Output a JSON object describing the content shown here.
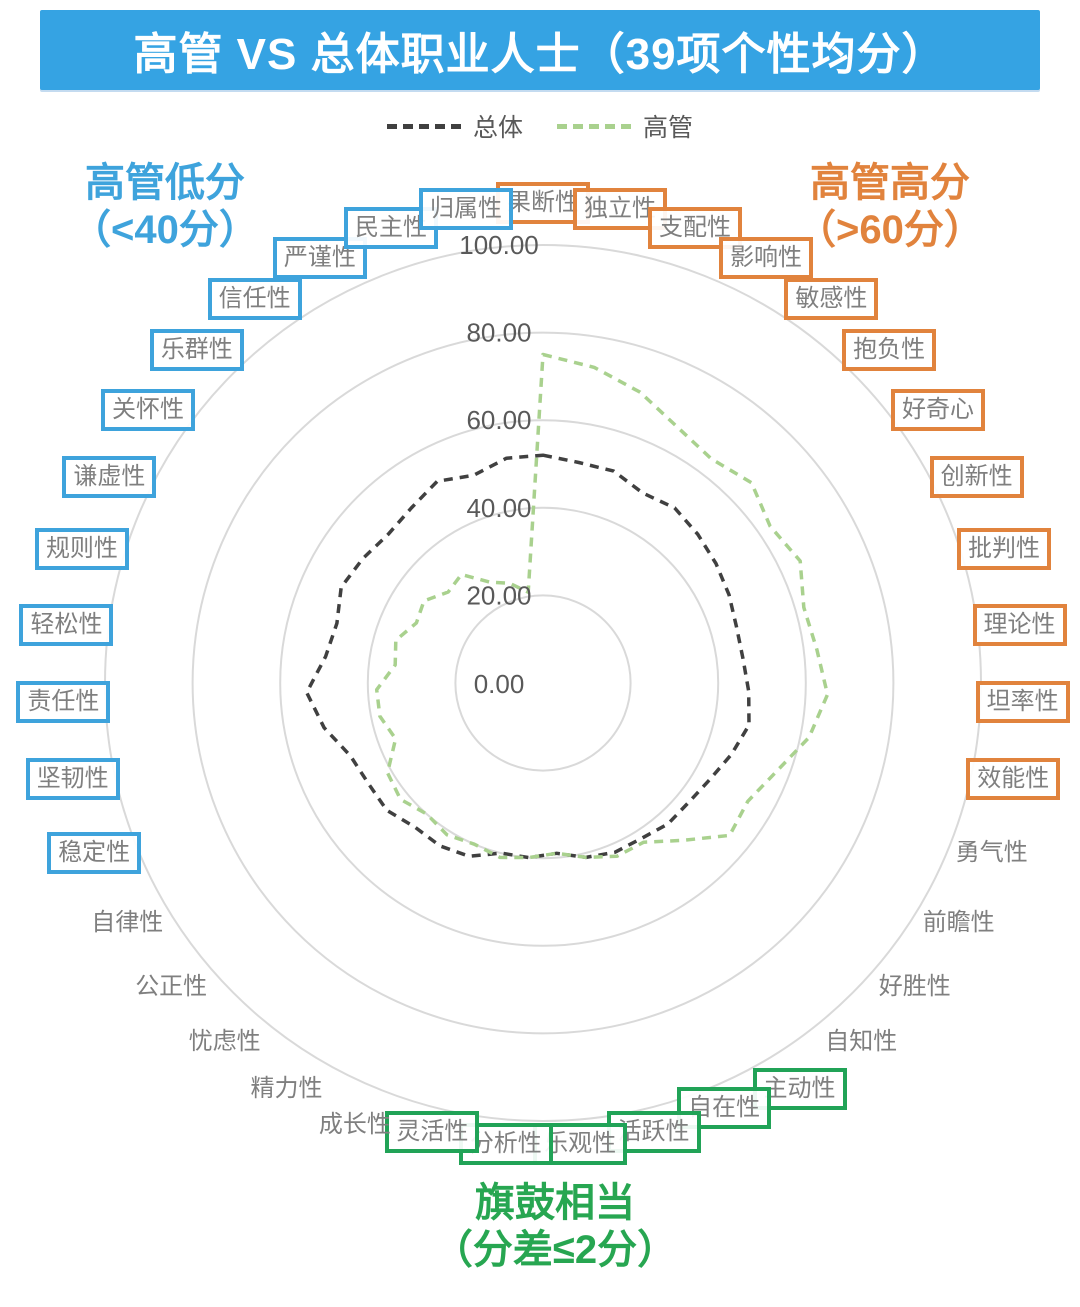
{
  "title": "高管 VS 总体职业人士（39项个性均分）",
  "legend": [
    {
      "label": "总体",
      "color": "#404040"
    },
    {
      "label": "高管",
      "color": "#a9d18e"
    }
  ],
  "annotations": {
    "low": {
      "line1": "高管低分",
      "line2": "（<40分）",
      "color": "#3ea3dc"
    },
    "high": {
      "line1": "高管高分",
      "line2": "（>60分）",
      "color": "#e1833d"
    },
    "equal": {
      "line1": "旗鼓相当",
      "line2": "（分差≤2分）",
      "color": "#27a651"
    }
  },
  "colors": {
    "banner": "#35a3e3",
    "grid": "#d9d9d9",
    "tick": "#595959",
    "axis_label": "#7f7f7f",
    "box_high": "#e1833d",
    "box_low": "#3ea3dc",
    "box_equal": "#21a357"
  },
  "chart_data": {
    "type": "radar",
    "title": "高管 VS 总体职业人士（39项个性均分）",
    "rlim": [
      0,
      100
    ],
    "tick_values": [
      0,
      20,
      40,
      60,
      80,
      100
    ],
    "rticks": [
      "0.00",
      "20.00",
      "40.00",
      "60.00",
      "80.00",
      "100.00"
    ],
    "grid": "circular",
    "legend_position": "top",
    "categories": [
      "果断性",
      "独立性",
      "支配性",
      "影响性",
      "敏感性",
      "抱负性",
      "好奇心",
      "创新性",
      "批判性",
      "理论性",
      "坦率性",
      "效能性",
      "勇气性",
      "前瞻性",
      "好胜性",
      "自知性",
      "主动性",
      "自在性",
      "活跃性",
      "乐观性",
      "分析性",
      "灵活性",
      "成长性",
      "精力性",
      "忧虑性",
      "公正性",
      "自律性",
      "稳定性",
      "坚韧性",
      "责任性",
      "轻松性",
      "规则性",
      "谦虚性",
      "关怀性",
      "乐群性",
      "信任性",
      "严谨性",
      "民主性",
      "归属性"
    ],
    "category_styles": [
      "high",
      "high",
      "high",
      "high",
      "high",
      "high",
      "high",
      "high",
      "high",
      "high",
      "high",
      "high",
      "plain",
      "plain",
      "plain",
      "plain",
      "equal",
      "equal",
      "equal",
      "equal",
      "equal",
      "equal",
      "plain",
      "plain",
      "plain",
      "plain",
      "plain",
      "low",
      "low",
      "low",
      "low",
      "low",
      "low",
      "low",
      "low",
      "low",
      "low",
      "low",
      "low"
    ],
    "series": [
      {
        "name": "总体",
        "color": "#404040",
        "values": [
          52,
          51,
          51,
          49,
          50,
          49,
          48,
          47,
          46,
          46,
          47,
          48,
          46,
          44,
          43,
          43,
          42,
          42,
          41,
          39,
          40,
          40,
          43,
          44,
          44,
          46,
          46,
          47,
          51,
          54,
          50,
          49,
          51,
          50,
          49,
          50,
          52,
          50,
          52
        ]
      },
      {
        "name": "高管",
        "color": "#a9d18e",
        "values": [
          75,
          73,
          70,
          66,
          64,
          66,
          63,
          65,
          62,
          63,
          65,
          62,
          57,
          54,
          55,
          48,
          43,
          43,
          41,
          39,
          40,
          41,
          40,
          41,
          40,
          42,
          41,
          36,
          38,
          38,
          34,
          35,
          32,
          33,
          30,
          31,
          26,
          24,
          21
        ]
      }
    ]
  }
}
